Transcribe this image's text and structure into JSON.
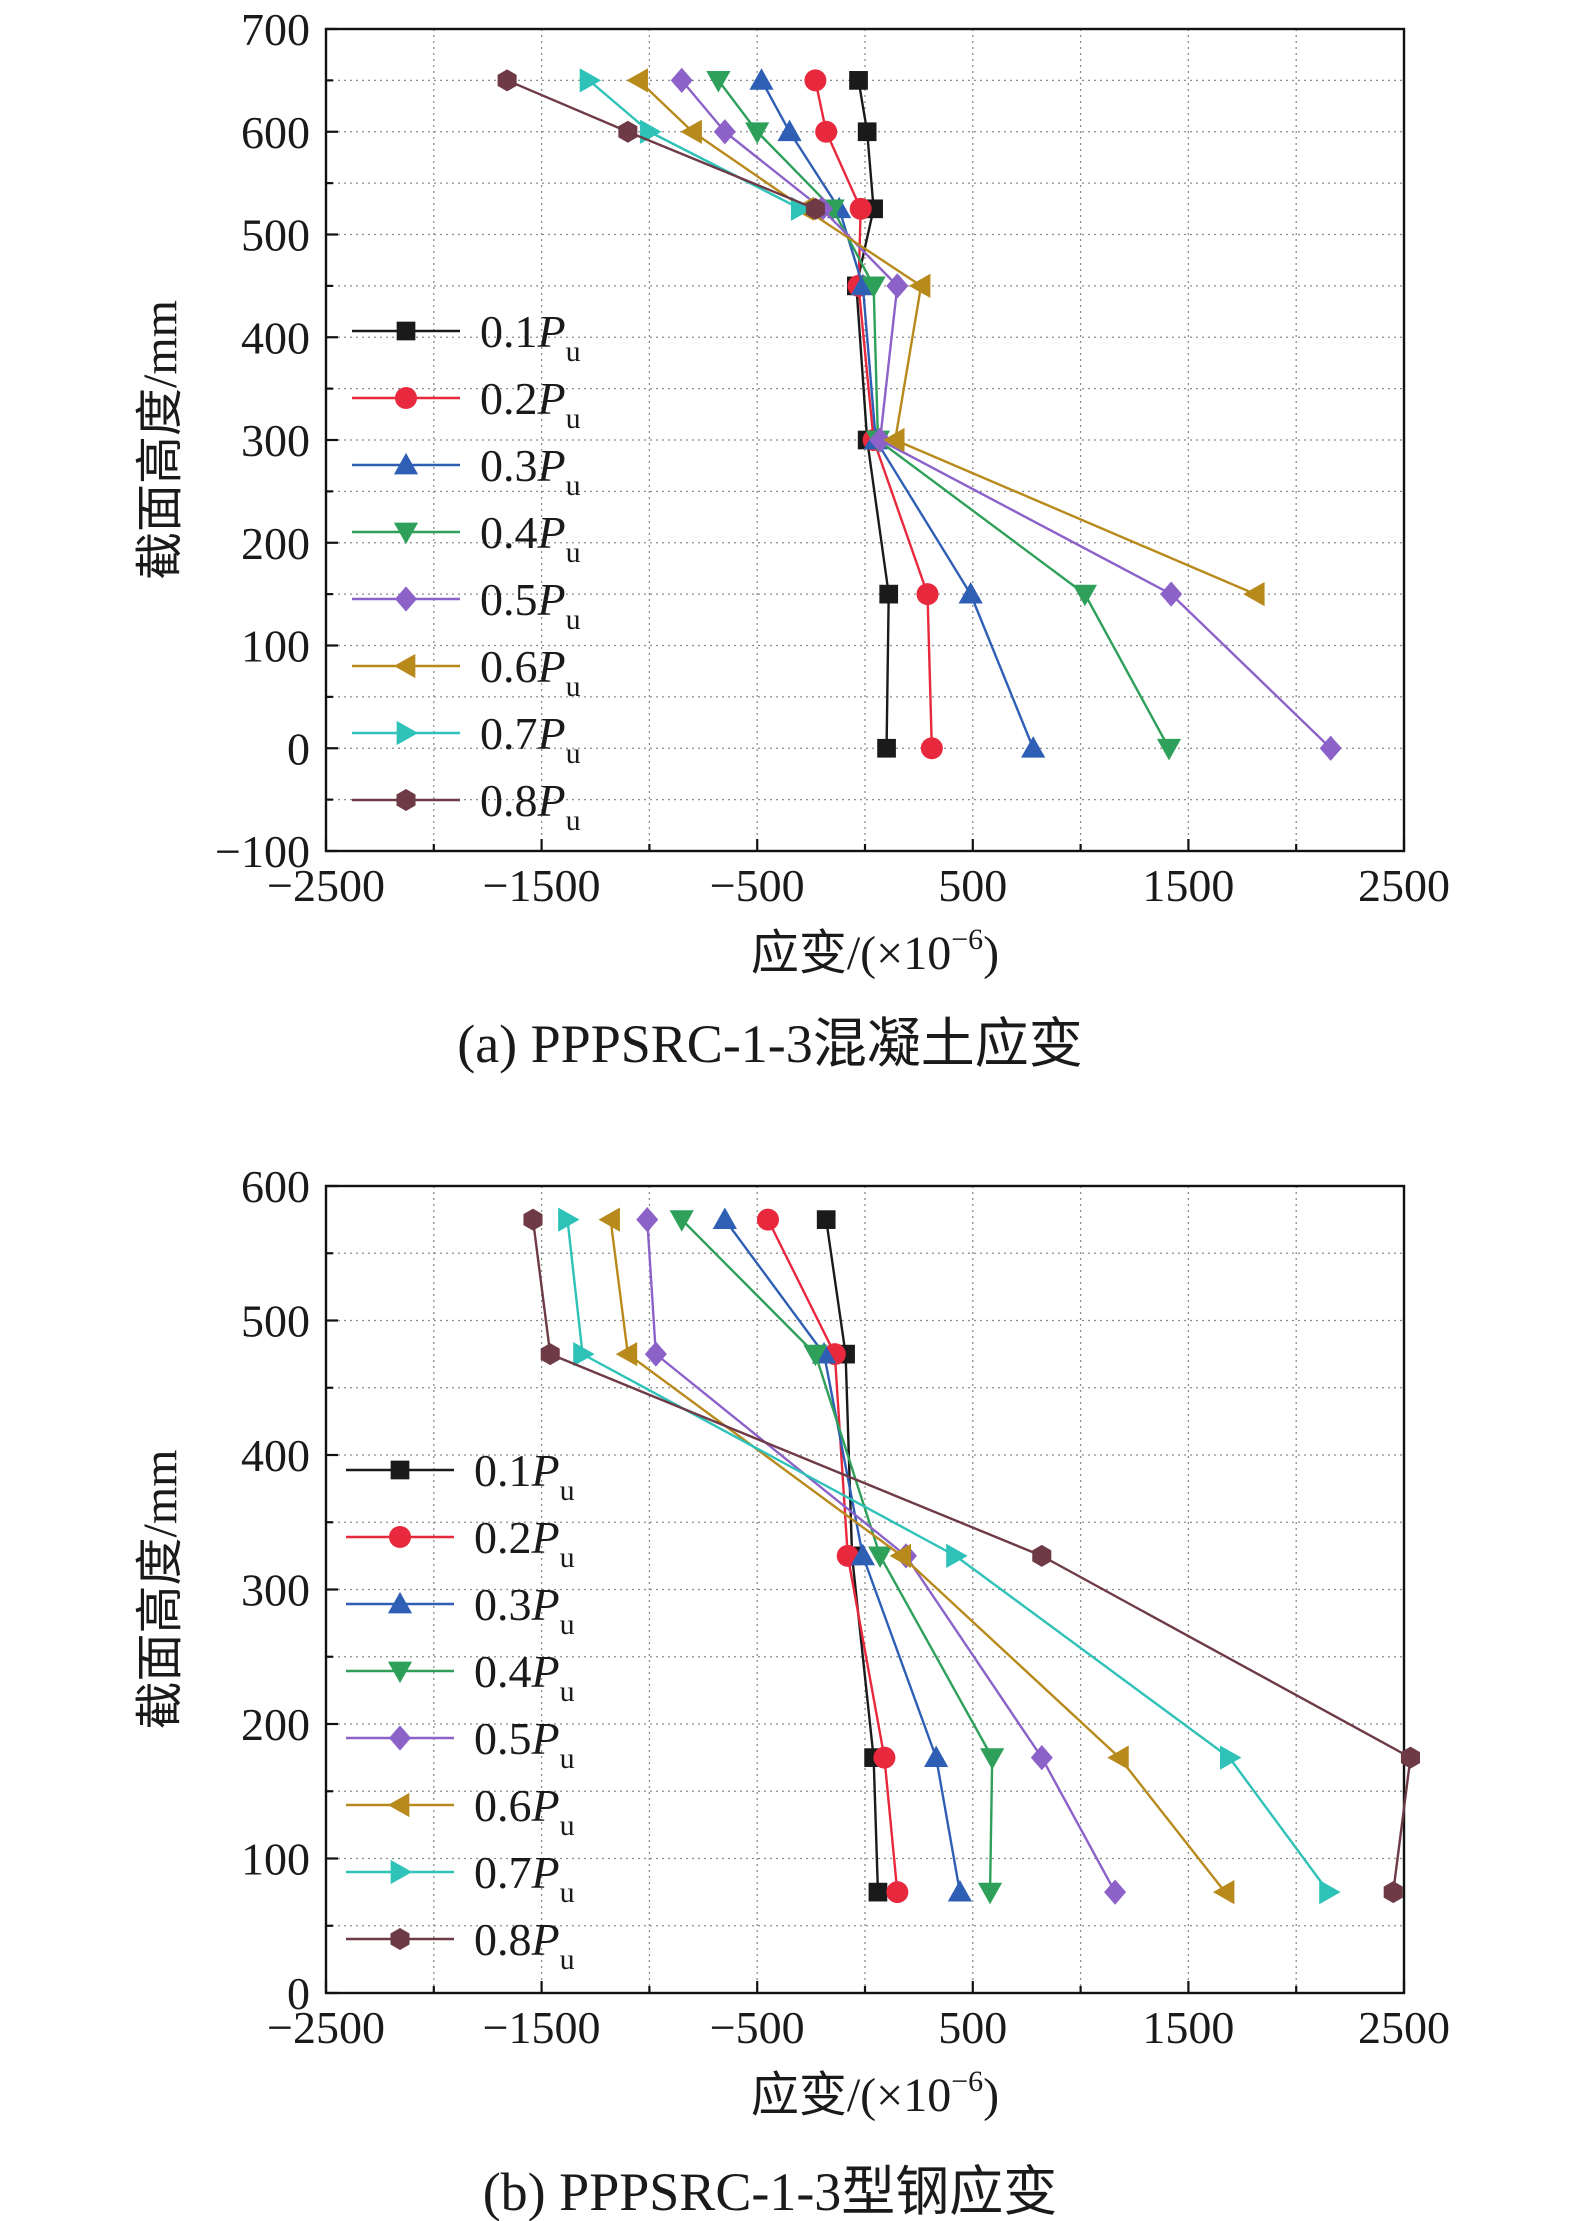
{
  "charts": [
    {
      "id": "a",
      "caption": "(a) PPPSRC-1-3混凝土应变",
      "chart_data": {
        "type": "line",
        "title": "(a) PPPSRC-1-3混凝土应变",
        "xlabel": "应变/(×10⁻⁶)",
        "xlabel_main": "应变/(×10",
        "xlabel_exp": "−6",
        "xlabel_close": ")",
        "ylabel": "截面高度/mm",
        "xlim": [
          -2500,
          2500
        ],
        "ylim": [
          -100,
          700
        ],
        "xticks": [
          -2500,
          -1500,
          -500,
          500,
          1500,
          2500
        ],
        "yticks": [
          -100,
          0,
          100,
          200,
          300,
          400,
          500,
          600,
          700
        ],
        "xtick_labels": [
          "−2500",
          "−1500",
          "−500",
          "500",
          "1500",
          "2500"
        ],
        "ytick_labels": [
          "−100",
          "0",
          "100",
          "200",
          "300",
          "400",
          "500",
          "600",
          "700"
        ],
        "grid": true,
        "legend_position": "left-middle",
        "y": [
          650,
          600,
          525,
          450,
          300,
          150,
          0
        ],
        "series": [
          {
            "name": "0.1",
            "sub": "u",
            "marker": "square",
            "color": "#1a1a1a",
            "x": [
              -30,
              10,
              40,
              -40,
              10,
              110,
              100
            ]
          },
          {
            "name": "0.2",
            "sub": "u",
            "marker": "circle",
            "color": "#e8283c",
            "x": [
              -230,
              -180,
              -20,
              -30,
              40,
              290,
              310
            ]
          },
          {
            "name": "0.3",
            "sub": "u",
            "marker": "triangle-up",
            "color": "#2f5fb5",
            "x": [
              -480,
              -350,
              -120,
              -10,
              50,
              490,
              780
            ]
          },
          {
            "name": "0.4",
            "sub": "u",
            "marker": "triangle-down",
            "color": "#2ea05a",
            "x": [
              -680,
              -500,
              -150,
              40,
              60,
              1020,
              1410
            ]
          },
          {
            "name": "0.5",
            "sub": "u",
            "marker": "diamond",
            "color": "#8c62c8",
            "x": [
              -850,
              -650,
              -200,
              150,
              70,
              1420,
              2160
            ]
          },
          {
            "name": "0.6",
            "sub": "u",
            "marker": "triangle-left",
            "color": "#b88a1c",
            "x": [
              -1050,
              -800,
              -280,
              260,
              140,
              1810
            ]
          },
          {
            "name": "0.7",
            "sub": "u",
            "marker": "triangle-right",
            "color": "#2ec2b8",
            "x": [
              -1280,
              -1000,
              -300
            ]
          },
          {
            "name": "0.8",
            "sub": "u",
            "marker": "hexagon",
            "color": "#6e3a46",
            "x": [
              -1660,
              -1100,
              -230
            ]
          }
        ]
      }
    },
    {
      "id": "b",
      "caption": "(b) PPPSRC-1-3型钢应变",
      "chart_data": {
        "type": "line",
        "title": "(b) PPPSRC-1-3型钢应变",
        "xlabel": "应变/(×10⁻⁶)",
        "xlabel_main": "应变/(×10",
        "xlabel_exp": "−6",
        "xlabel_close": ")",
        "ylabel": "截面高度/mm",
        "xlim": [
          -2500,
          2500
        ],
        "ylim": [
          0,
          600
        ],
        "xticks": [
          -2500,
          -1500,
          -500,
          500,
          1500,
          2500
        ],
        "yticks": [
          0,
          100,
          200,
          300,
          400,
          500,
          600
        ],
        "xtick_labels": [
          "−2500",
          "−1500",
          "−500",
          "500",
          "1500",
          "2500"
        ],
        "ytick_labels": [
          "0",
          "100",
          "200",
          "300",
          "400",
          "500",
          "600"
        ],
        "grid": true,
        "legend_position": "left-middle",
        "y": [
          575,
          475,
          325,
          175,
          75
        ],
        "series": [
          {
            "name": "0.1",
            "sub": "u",
            "marker": "square",
            "color": "#1a1a1a",
            "x": [
              -180,
              -90,
              -60,
              40,
              60
            ]
          },
          {
            "name": "0.2",
            "sub": "u",
            "marker": "circle",
            "color": "#e8283c",
            "x": [
              -450,
              -140,
              -80,
              90,
              150
            ]
          },
          {
            "name": "0.3",
            "sub": "u",
            "marker": "triangle-up",
            "color": "#2f5fb5",
            "x": [
              -650,
              -190,
              -10,
              330,
              440
            ]
          },
          {
            "name": "0.4",
            "sub": "u",
            "marker": "triangle-down",
            "color": "#2ea05a",
            "x": [
              -850,
              -230,
              70,
              590,
              580
            ]
          },
          {
            "name": "0.5",
            "sub": "u",
            "marker": "diamond",
            "color": "#8c62c8",
            "x": [
              -1010,
              -970,
              190,
              820,
              1160
            ]
          },
          {
            "name": "0.6",
            "sub": "u",
            "marker": "triangle-left",
            "color": "#b88a1c",
            "x": [
              -1180,
              -1100,
              170,
              1180,
              1670
            ]
          },
          {
            "name": "0.7",
            "sub": "u",
            "marker": "triangle-right",
            "color": "#2ec2b8",
            "x": [
              -1380,
              -1310,
              420,
              1690,
              2150
            ]
          },
          {
            "name": "0.8",
            "sub": "u",
            "marker": "hexagon",
            "color": "#6e3a46",
            "x": [
              -1540,
              -1460,
              820,
              2530,
              2450
            ]
          }
        ]
      }
    }
  ]
}
